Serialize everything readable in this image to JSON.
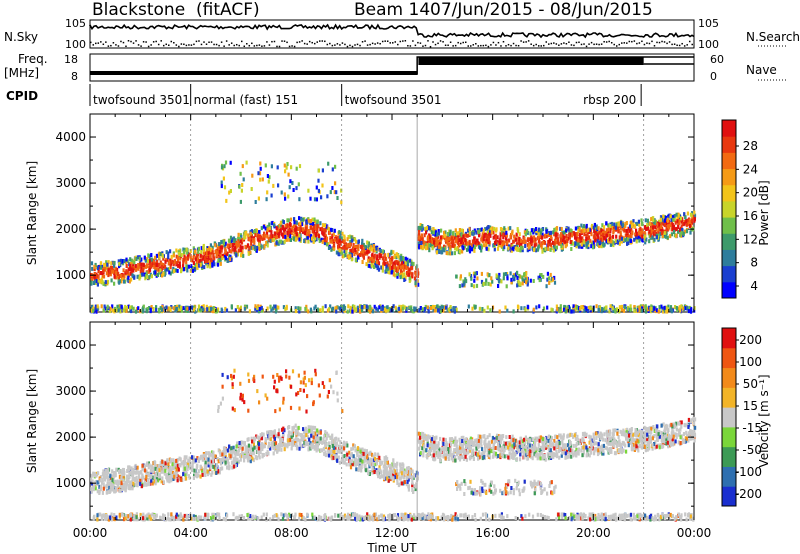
{
  "header": {
    "radar": "Blackstone",
    "mode": "(fitACF)",
    "beam": "Beam 14",
    "dates": "07/Jun/2015 - 08/Jun/2015"
  },
  "params": {
    "nsky_label": "N.Sky",
    "nsearch_label": "N.Search",
    "freq_label_1": "Freq.",
    "freq_label_2": "[MHz]",
    "nave_label": "Nave",
    "cpid_label": "CPID",
    "nsky_ticks": [
      "10^5",
      "10^0"
    ],
    "nsearch_ticks": [
      "10^5",
      "10^0"
    ],
    "freq_ticks": [
      "18",
      "8"
    ],
    "nave_ticks": [
      "60",
      "0"
    ]
  },
  "cpid_segments": [
    {
      "label": "twofsound 3501",
      "start_h": 0.0,
      "end_h": 4.0
    },
    {
      "label": "normal (fast) 151",
      "start_h": 4.0,
      "end_h": 10.0
    },
    {
      "label": "twofsound 3501",
      "start_h": 10.0,
      "end_h": 21.9
    },
    {
      "label": "rbsp 200",
      "start_h": 21.9,
      "end_h": 24.0
    }
  ],
  "chart_data": [
    {
      "type": "heatmap",
      "title": "Power",
      "ylabel": "Slant Range [km]",
      "xlabel": "Time UT",
      "x_range_hours": [
        0,
        24
      ],
      "x_ticks": [
        "00:00",
        "04:00",
        "08:00",
        "12:00",
        "16:00",
        "20:00",
        "00:00"
      ],
      "ylim": [
        200,
        4500
      ],
      "y_ticks": [
        1000,
        2000,
        3000,
        4000
      ],
      "colorbar_label": "Power [dB]",
      "colorbar_ticks": [
        "28",
        "24",
        "20",
        "16",
        "12",
        "8",
        "4"
      ],
      "colorbar_colors": [
        "#0000ff",
        "#1a3fd0",
        "#2e7d9c",
        "#3d9a6b",
        "#6fbf4a",
        "#c8d42a",
        "#f2c41a",
        "#f59a16",
        "#f26a12",
        "#e8380f",
        "#e01010"
      ],
      "scatter_bands": [
        {
          "x_hours": [
            0,
            1,
            2,
            3,
            4,
            5,
            6,
            7,
            8,
            9,
            10,
            11,
            12,
            13
          ],
          "range_km": [
            1050,
            1100,
            1200,
            1300,
            1380,
            1500,
            1700,
            1900,
            2050,
            2000,
            1700,
            1500,
            1300,
            1050
          ]
        },
        {
          "x_hours": [
            13,
            14,
            15,
            16,
            17,
            18,
            19,
            20,
            21,
            22,
            23,
            24
          ],
          "range_km": [
            1900,
            1750,
            1800,
            1850,
            1800,
            1800,
            1850,
            1900,
            1950,
            2000,
            2100,
            2200
          ]
        }
      ]
    },
    {
      "type": "heatmap",
      "title": "Velocity",
      "ylabel": "Slant Range [km]",
      "xlabel": "Time UT",
      "x_range_hours": [
        0,
        24
      ],
      "x_ticks": [
        "00:00",
        "04:00",
        "08:00",
        "12:00",
        "16:00",
        "20:00",
        "00:00"
      ],
      "ylim": [
        200,
        4500
      ],
      "y_ticks": [
        1000,
        2000,
        3000,
        4000
      ],
      "colorbar_label": "Velocity [m s⁻¹]",
      "colorbar_ticks": [
        "200",
        "100",
        "50",
        "15",
        "-15",
        "-50",
        "-100",
        "-200"
      ],
      "colorbar_colors": [
        "#1a2fcf",
        "#2e6fb0",
        "#3c9a55",
        "#7ad63a",
        "#c8c8c8",
        "#f2b428",
        "#f28a1a",
        "#ef5612",
        "#e01010"
      ]
    }
  ],
  "axis": {
    "x_title": "Time UT"
  }
}
